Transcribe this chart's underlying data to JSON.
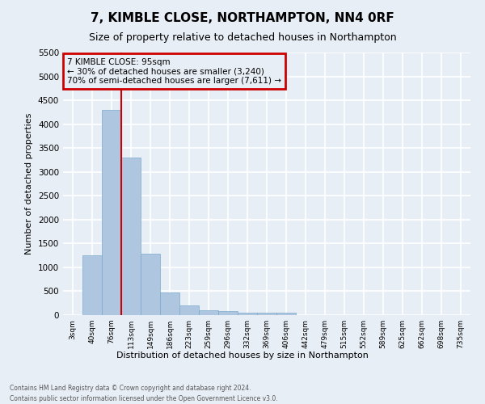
{
  "title": "7, KIMBLE CLOSE, NORTHAMPTON, NN4 0RF",
  "subtitle": "Size of property relative to detached houses in Northampton",
  "xlabel": "Distribution of detached houses by size in Northampton",
  "ylabel": "Number of detached properties",
  "categories": [
    "3sqm",
    "40sqm",
    "76sqm",
    "113sqm",
    "149sqm",
    "186sqm",
    "223sqm",
    "259sqm",
    "296sqm",
    "332sqm",
    "369sqm",
    "406sqm",
    "442sqm",
    "479sqm",
    "515sqm",
    "552sqm",
    "589sqm",
    "625sqm",
    "662sqm",
    "698sqm",
    "735sqm"
  ],
  "values": [
    0,
    1250,
    4300,
    3300,
    1280,
    480,
    195,
    100,
    80,
    55,
    50,
    50,
    0,
    0,
    0,
    0,
    0,
    0,
    0,
    0,
    0
  ],
  "bar_color": "#aec6e0",
  "bar_edgecolor": "#7aaaca",
  "ylim": [
    0,
    5500
  ],
  "yticks": [
    0,
    500,
    1000,
    1500,
    2000,
    2500,
    3000,
    3500,
    4000,
    4500,
    5000,
    5500
  ],
  "vline_color": "#cc0000",
  "annotation_line1": "7 KIMBLE CLOSE: 95sqm",
  "annotation_line2": "← 30% of detached houses are smaller (3,240)",
  "annotation_line3": "70% of semi-detached houses are larger (7,611) →",
  "annotation_box_color": "#cc0000",
  "footer1": "Contains HM Land Registry data © Crown copyright and database right 2024.",
  "footer2": "Contains public sector information licensed under the Open Government Licence v3.0.",
  "bg_color": "#e8eef5",
  "grid_color": "#ffffff",
  "title_fontsize": 11,
  "subtitle_fontsize": 9,
  "bin_width": 37,
  "vline_sqm": 95,
  "property_sqm": 95
}
